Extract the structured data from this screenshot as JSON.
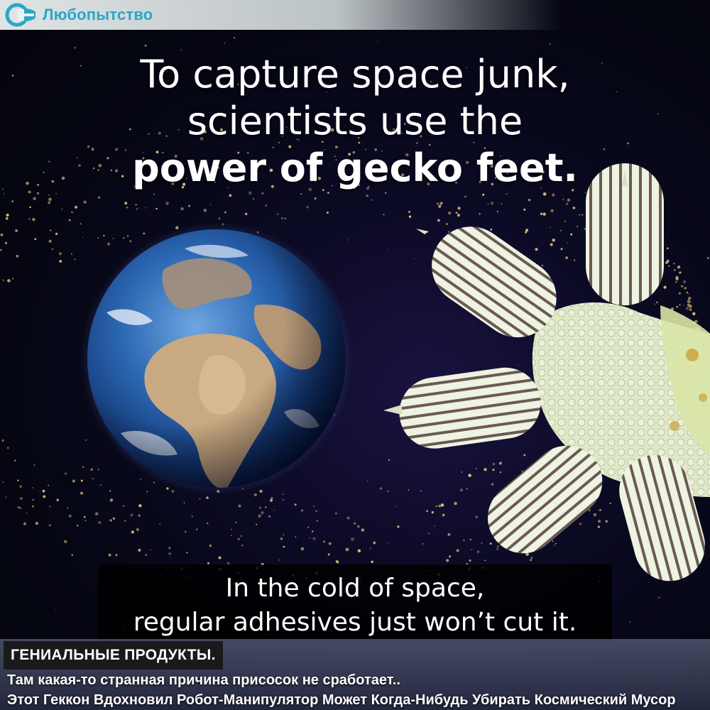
{
  "brand": {
    "name": "Любопытство",
    "logo_color": "#2aa6c9"
  },
  "headline": {
    "line1": "To capture space junk,",
    "line2": "scientists use the",
    "line3": "power of gecko feet."
  },
  "caption": {
    "line1": "In the cold of space,",
    "line2": "regular adhesives just won’t cut it."
  },
  "overlay": {
    "tag": "ГЕНИАЛЬНЫЕ ПРОДУКТЫ.",
    "subtitle1": "Там какая-то странная причина присосок не сработает..",
    "subtitle2": "Этот Геккон Вдохновил Робот-Манипулятор Может Когда-Нибудь Убирать Космический Мусор"
  },
  "colors": {
    "space": "#05060f",
    "ocean": "#1f5fae",
    "land": "#b89a78",
    "gecko": "#e4ecd6",
    "debris": "#e9c77a"
  }
}
